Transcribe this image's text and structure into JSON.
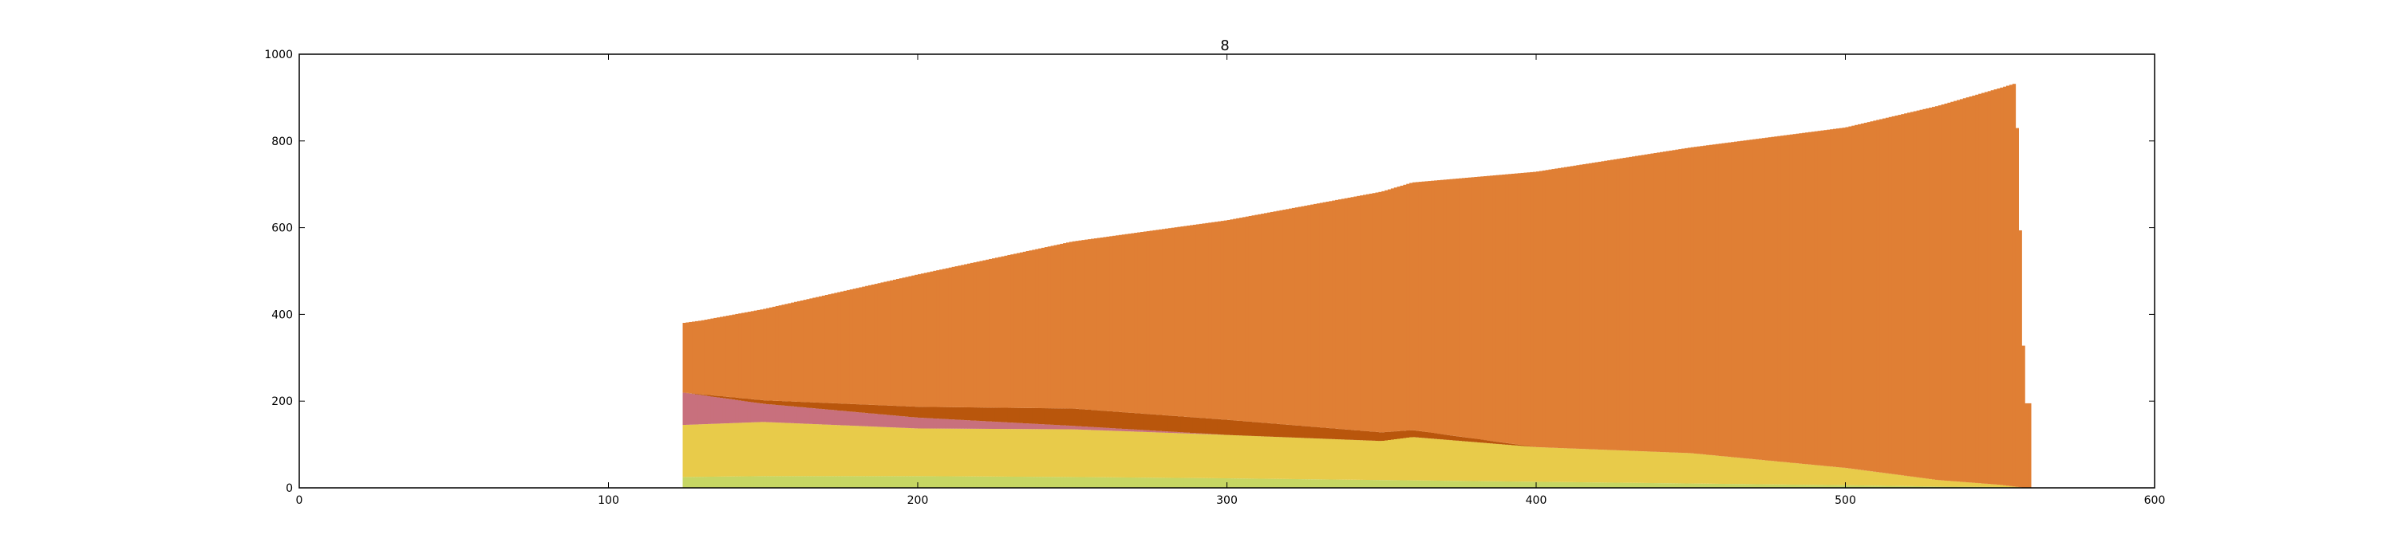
{
  "chart_data": {
    "type": "bar",
    "stacked": true,
    "title": "8",
    "xlabel": "",
    "ylabel": "",
    "xlim": [
      0,
      600
    ],
    "ylim": [
      0,
      1000
    ],
    "xticks": [
      0,
      100,
      200,
      300,
      400,
      500,
      600
    ],
    "yticks": [
      0,
      200,
      400,
      600,
      800,
      1000
    ],
    "xtick_labels": [
      "0",
      "100",
      "200",
      "300",
      "400",
      "500",
      "600"
    ],
    "ytick_labels": [
      "0",
      "200",
      "400",
      "600",
      "800",
      "1000"
    ],
    "grid": false,
    "x_start": 124,
    "x_end": 560,
    "series": [
      {
        "color": "#c6d663",
        "x": [
          124,
          150,
          200,
          250,
          300,
          350,
          400,
          450,
          500,
          530,
          550,
          558
        ],
        "values": [
          25,
          27,
          27,
          25,
          22,
          18,
          14,
          10,
          6,
          3,
          2,
          0
        ]
      },
      {
        "color": "#e8cb4a",
        "x": [
          124,
          150,
          200,
          250,
          300,
          350,
          360,
          400,
          450,
          500,
          530,
          550,
          558
        ],
        "values": [
          120,
          125,
          110,
          110,
          100,
          90,
          100,
          80,
          70,
          40,
          15,
          5,
          0
        ]
      },
      {
        "color": "#c8707d",
        "x": [
          124,
          150,
          200,
          250,
          300,
          350,
          400,
          450,
          500,
          558
        ],
        "values": [
          75,
          42,
          25,
          8,
          0,
          0,
          0,
          0,
          0,
          0
        ]
      },
      {
        "color": "#b9560c",
        "x": [
          124,
          150,
          200,
          250,
          300,
          350,
          400,
          450,
          500,
          558
        ],
        "values": [
          0,
          8,
          25,
          40,
          35,
          20,
          0,
          0,
          0,
          0
        ]
      },
      {
        "color": "#e07f34",
        "x": [
          124,
          130,
          150,
          200,
          250,
          300,
          350,
          400,
          450,
          500,
          550,
          555,
          556,
          558
        ],
        "values": [
          160,
          170,
          210,
          305,
          385,
          460,
          555,
          635,
          705,
          785,
          915,
          930,
          725,
          195
        ]
      }
    ]
  }
}
